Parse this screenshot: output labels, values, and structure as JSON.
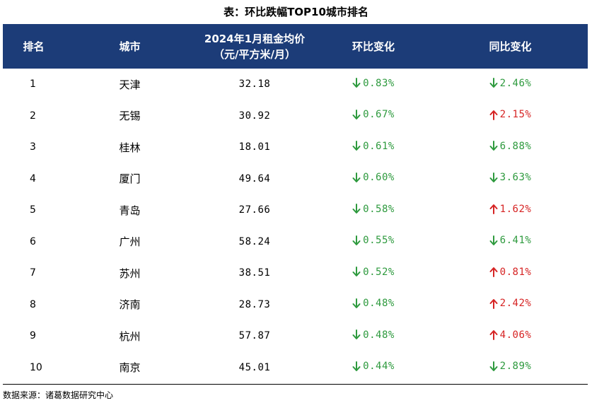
{
  "title": "表：环比跌幅TOP10城市排名",
  "header": {
    "rank": "排名",
    "city": "城市",
    "rent_line1": "2024年1月租金均价",
    "rent_line2": "（元/平方米/月）",
    "mom": "环比变化",
    "yoy": "同比变化"
  },
  "rows": [
    {
      "rank": "1",
      "city": "天津",
      "rent": "32.18",
      "mom": "0.83%",
      "mom_dir": "down",
      "yoy": "2.46%",
      "yoy_dir": "down"
    },
    {
      "rank": "2",
      "city": "无锡",
      "rent": "30.92",
      "mom": "0.67%",
      "mom_dir": "down",
      "yoy": "2.15%",
      "yoy_dir": "up"
    },
    {
      "rank": "3",
      "city": "桂林",
      "rent": "18.01",
      "mom": "0.61%",
      "mom_dir": "down",
      "yoy": "6.88%",
      "yoy_dir": "down"
    },
    {
      "rank": "4",
      "city": "厦门",
      "rent": "49.64",
      "mom": "0.60%",
      "mom_dir": "down",
      "yoy": "3.63%",
      "yoy_dir": "down"
    },
    {
      "rank": "5",
      "city": "青岛",
      "rent": "27.66",
      "mom": "0.58%",
      "mom_dir": "down",
      "yoy": "1.62%",
      "yoy_dir": "up"
    },
    {
      "rank": "6",
      "city": "广州",
      "rent": "58.24",
      "mom": "0.55%",
      "mom_dir": "down",
      "yoy": "6.41%",
      "yoy_dir": "down"
    },
    {
      "rank": "7",
      "city": "苏州",
      "rent": "38.51",
      "mom": "0.52%",
      "mom_dir": "down",
      "yoy": "0.81%",
      "yoy_dir": "up"
    },
    {
      "rank": "8",
      "city": "济南",
      "rent": "28.73",
      "mom": "0.48%",
      "mom_dir": "down",
      "yoy": "2.42%",
      "yoy_dir": "up"
    },
    {
      "rank": "9",
      "city": "杭州",
      "rent": "57.87",
      "mom": "0.48%",
      "mom_dir": "down",
      "yoy": "4.06%",
      "yoy_dir": "up"
    },
    {
      "rank": "10",
      "city": "南京",
      "rent": "45.01",
      "mom": "0.44%",
      "mom_dir": "down",
      "yoy": "2.89%",
      "yoy_dir": "down"
    }
  ],
  "colors": {
    "header_bg": "#1c3c78",
    "down": "#2e9a3e",
    "up": "#d62424"
  },
  "icons": {
    "down": "arrow-down-icon",
    "up": "arrow-up-icon"
  },
  "source": "数据来源：诸葛数据研究中心"
}
